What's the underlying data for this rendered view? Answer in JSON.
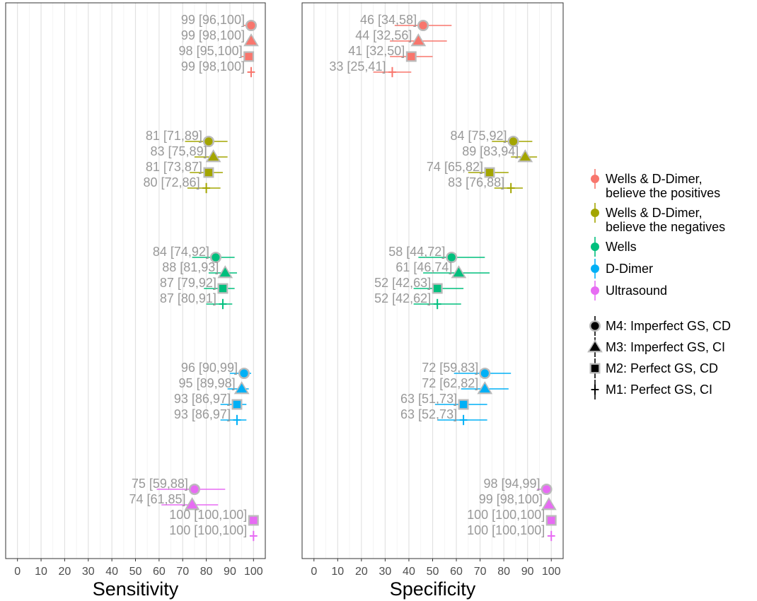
{
  "chart_data": {
    "type": "forest",
    "panels": [
      {
        "name": "sensitivity",
        "xlabel": "Sensitivity",
        "xlim": [
          -5,
          105
        ],
        "ticks": [
          0,
          10,
          20,
          30,
          40,
          50,
          60,
          70,
          80,
          90,
          100
        ],
        "groups": [
          {
            "test": "Wells & D-Dimer, believe the positives",
            "rows": [
              {
                "model": "M4",
                "est": 99,
                "lo": 96,
                "hi": 100,
                "label": "99 [96,100]"
              },
              {
                "model": "M3",
                "est": 99,
                "lo": 98,
                "hi": 100,
                "label": "99 [98,100]"
              },
              {
                "model": "M2",
                "est": 98,
                "lo": 95,
                "hi": 100,
                "label": "98 [95,100]"
              },
              {
                "model": "M1",
                "est": 99,
                "lo": 98,
                "hi": 100,
                "label": "99 [98,100]"
              }
            ]
          },
          {
            "test": "Wells & D-Dimer, believe the negatives",
            "rows": [
              {
                "model": "M4",
                "est": 81,
                "lo": 71,
                "hi": 89,
                "label": "81 [71,89]"
              },
              {
                "model": "M3",
                "est": 83,
                "lo": 75,
                "hi": 89,
                "label": "83 [75,89]"
              },
              {
                "model": "M2",
                "est": 81,
                "lo": 73,
                "hi": 87,
                "label": "81 [73,87]"
              },
              {
                "model": "M1",
                "est": 80,
                "lo": 72,
                "hi": 86,
                "label": "80 [72,86]"
              }
            ]
          },
          {
            "test": "Wells",
            "rows": [
              {
                "model": "M4",
                "est": 84,
                "lo": 74,
                "hi": 92,
                "label": "84 [74,92]"
              },
              {
                "model": "M3",
                "est": 88,
                "lo": 81,
                "hi": 93,
                "label": "88 [81,93]"
              },
              {
                "model": "M2",
                "est": 87,
                "lo": 79,
                "hi": 92,
                "label": "87 [79,92]"
              },
              {
                "model": "M1",
                "est": 87,
                "lo": 80,
                "hi": 91,
                "label": "87 [80,91]"
              }
            ]
          },
          {
            "test": "D-Dimer",
            "rows": [
              {
                "model": "M4",
                "est": 96,
                "lo": 90,
                "hi": 99,
                "label": "96 [90,99]"
              },
              {
                "model": "M3",
                "est": 95,
                "lo": 89,
                "hi": 98,
                "label": "95 [89,98]"
              },
              {
                "model": "M2",
                "est": 93,
                "lo": 86,
                "hi": 97,
                "label": "93 [86,97]"
              },
              {
                "model": "M1",
                "est": 93,
                "lo": 86,
                "hi": 97,
                "label": "93 [86,97]"
              }
            ]
          },
          {
            "test": "Ultrasound",
            "rows": [
              {
                "model": "M4",
                "est": 75,
                "lo": 59,
                "hi": 88,
                "label": "75 [59,88]"
              },
              {
                "model": "M3",
                "est": 74,
                "lo": 61,
                "hi": 85,
                "label": "74 [61,85]"
              },
              {
                "model": "M2",
                "est": 100,
                "lo": 100,
                "hi": 100,
                "label": "100 [100,100]"
              },
              {
                "model": "M1",
                "est": 100,
                "lo": 100,
                "hi": 100,
                "label": "100 [100,100]"
              }
            ]
          }
        ]
      },
      {
        "name": "specificity",
        "xlabel": "Specificity",
        "xlim": [
          -5,
          105
        ],
        "ticks": [
          0,
          10,
          20,
          30,
          40,
          50,
          60,
          70,
          80,
          90,
          100
        ],
        "groups": [
          {
            "test": "Wells & D-Dimer, believe the positives",
            "rows": [
              {
                "model": "M4",
                "est": 46,
                "lo": 34,
                "hi": 58,
                "label": "46 [34,58]"
              },
              {
                "model": "M3",
                "est": 44,
                "lo": 32,
                "hi": 56,
                "label": "44 [32,56]"
              },
              {
                "model": "M2",
                "est": 41,
                "lo": 32,
                "hi": 50,
                "label": "41 [32,50]"
              },
              {
                "model": "M1",
                "est": 33,
                "lo": 25,
                "hi": 41,
                "label": "33 [25,41]"
              }
            ]
          },
          {
            "test": "Wells & D-Dimer, believe the negatives",
            "rows": [
              {
                "model": "M4",
                "est": 84,
                "lo": 75,
                "hi": 92,
                "label": "84 [75,92]"
              },
              {
                "model": "M3",
                "est": 89,
                "lo": 83,
                "hi": 94,
                "label": "89 [83,94]"
              },
              {
                "model": "M2",
                "est": 74,
                "lo": 65,
                "hi": 82,
                "label": "74 [65,82]"
              },
              {
                "model": "M1",
                "est": 83,
                "lo": 76,
                "hi": 88,
                "label": "83 [76,88]"
              }
            ]
          },
          {
            "test": "Wells",
            "rows": [
              {
                "model": "M4",
                "est": 58,
                "lo": 44,
                "hi": 72,
                "label": "58 [44,72]"
              },
              {
                "model": "M3",
                "est": 61,
                "lo": 46,
                "hi": 74,
                "label": "61 [46,74]"
              },
              {
                "model": "M2",
                "est": 52,
                "lo": 42,
                "hi": 63,
                "label": "52 [42,63]"
              },
              {
                "model": "M1",
                "est": 52,
                "lo": 42,
                "hi": 62,
                "label": "52 [42,62]"
              }
            ]
          },
          {
            "test": "D-Dimer",
            "rows": [
              {
                "model": "M4",
                "est": 72,
                "lo": 59,
                "hi": 83,
                "label": "72 [59,83]"
              },
              {
                "model": "M3",
                "est": 72,
                "lo": 62,
                "hi": 82,
                "label": "72 [62,82]"
              },
              {
                "model": "M2",
                "est": 63,
                "lo": 51,
                "hi": 73,
                "label": "63 [51,73]"
              },
              {
                "model": "M1",
                "est": 63,
                "lo": 52,
                "hi": 73,
                "label": "63 [52,73]"
              }
            ]
          },
          {
            "test": "Ultrasound",
            "rows": [
              {
                "model": "M4",
                "est": 98,
                "lo": 94,
                "hi": 99,
                "label": "98 [94,99]"
              },
              {
                "model": "M3",
                "est": 99,
                "lo": 98,
                "hi": 100,
                "label": "99 [98,100]"
              },
              {
                "model": "M2",
                "est": 100,
                "lo": 100,
                "hi": 100,
                "label": "100 [100,100]"
              },
              {
                "model": "M1",
                "est": 100,
                "lo": 100,
                "hi": 100,
                "label": "100 [100,100]"
              }
            ]
          }
        ]
      }
    ],
    "tests": [
      {
        "key": "Wells & D-Dimer, believe the positives",
        "lines": [
          "Wells & D-Dimer,",
          "believe the positives"
        ],
        "color": "#F8766D"
      },
      {
        "key": "Wells & D-Dimer, believe the negatives",
        "lines": [
          "Wells & D-Dimer,",
          "believe the negatives"
        ],
        "color": "#A3A500"
      },
      {
        "key": "Wells",
        "lines": [
          "Wells"
        ],
        "color": "#00BF7D"
      },
      {
        "key": "D-Dimer",
        "lines": [
          "D-Dimer"
        ],
        "color": "#00B0F6"
      },
      {
        "key": "Ultrasound",
        "lines": [
          "Ultrasound"
        ],
        "color": "#E76BF3"
      }
    ],
    "models": [
      {
        "key": "M4",
        "label": "M4: Imperfect GS, CD",
        "shape": "circle"
      },
      {
        "key": "M3",
        "label": "M3: Imperfect GS, CI",
        "shape": "triangle"
      },
      {
        "key": "M2",
        "label": "M2: Perfect GS, CD",
        "shape": "square"
      },
      {
        "key": "M1",
        "label": "M1: Perfect GS, CI",
        "shape": "cross"
      }
    ],
    "label_color": "#999999",
    "highlight_color": "#BBBBBB",
    "grid": true,
    "legend_position": "right"
  }
}
